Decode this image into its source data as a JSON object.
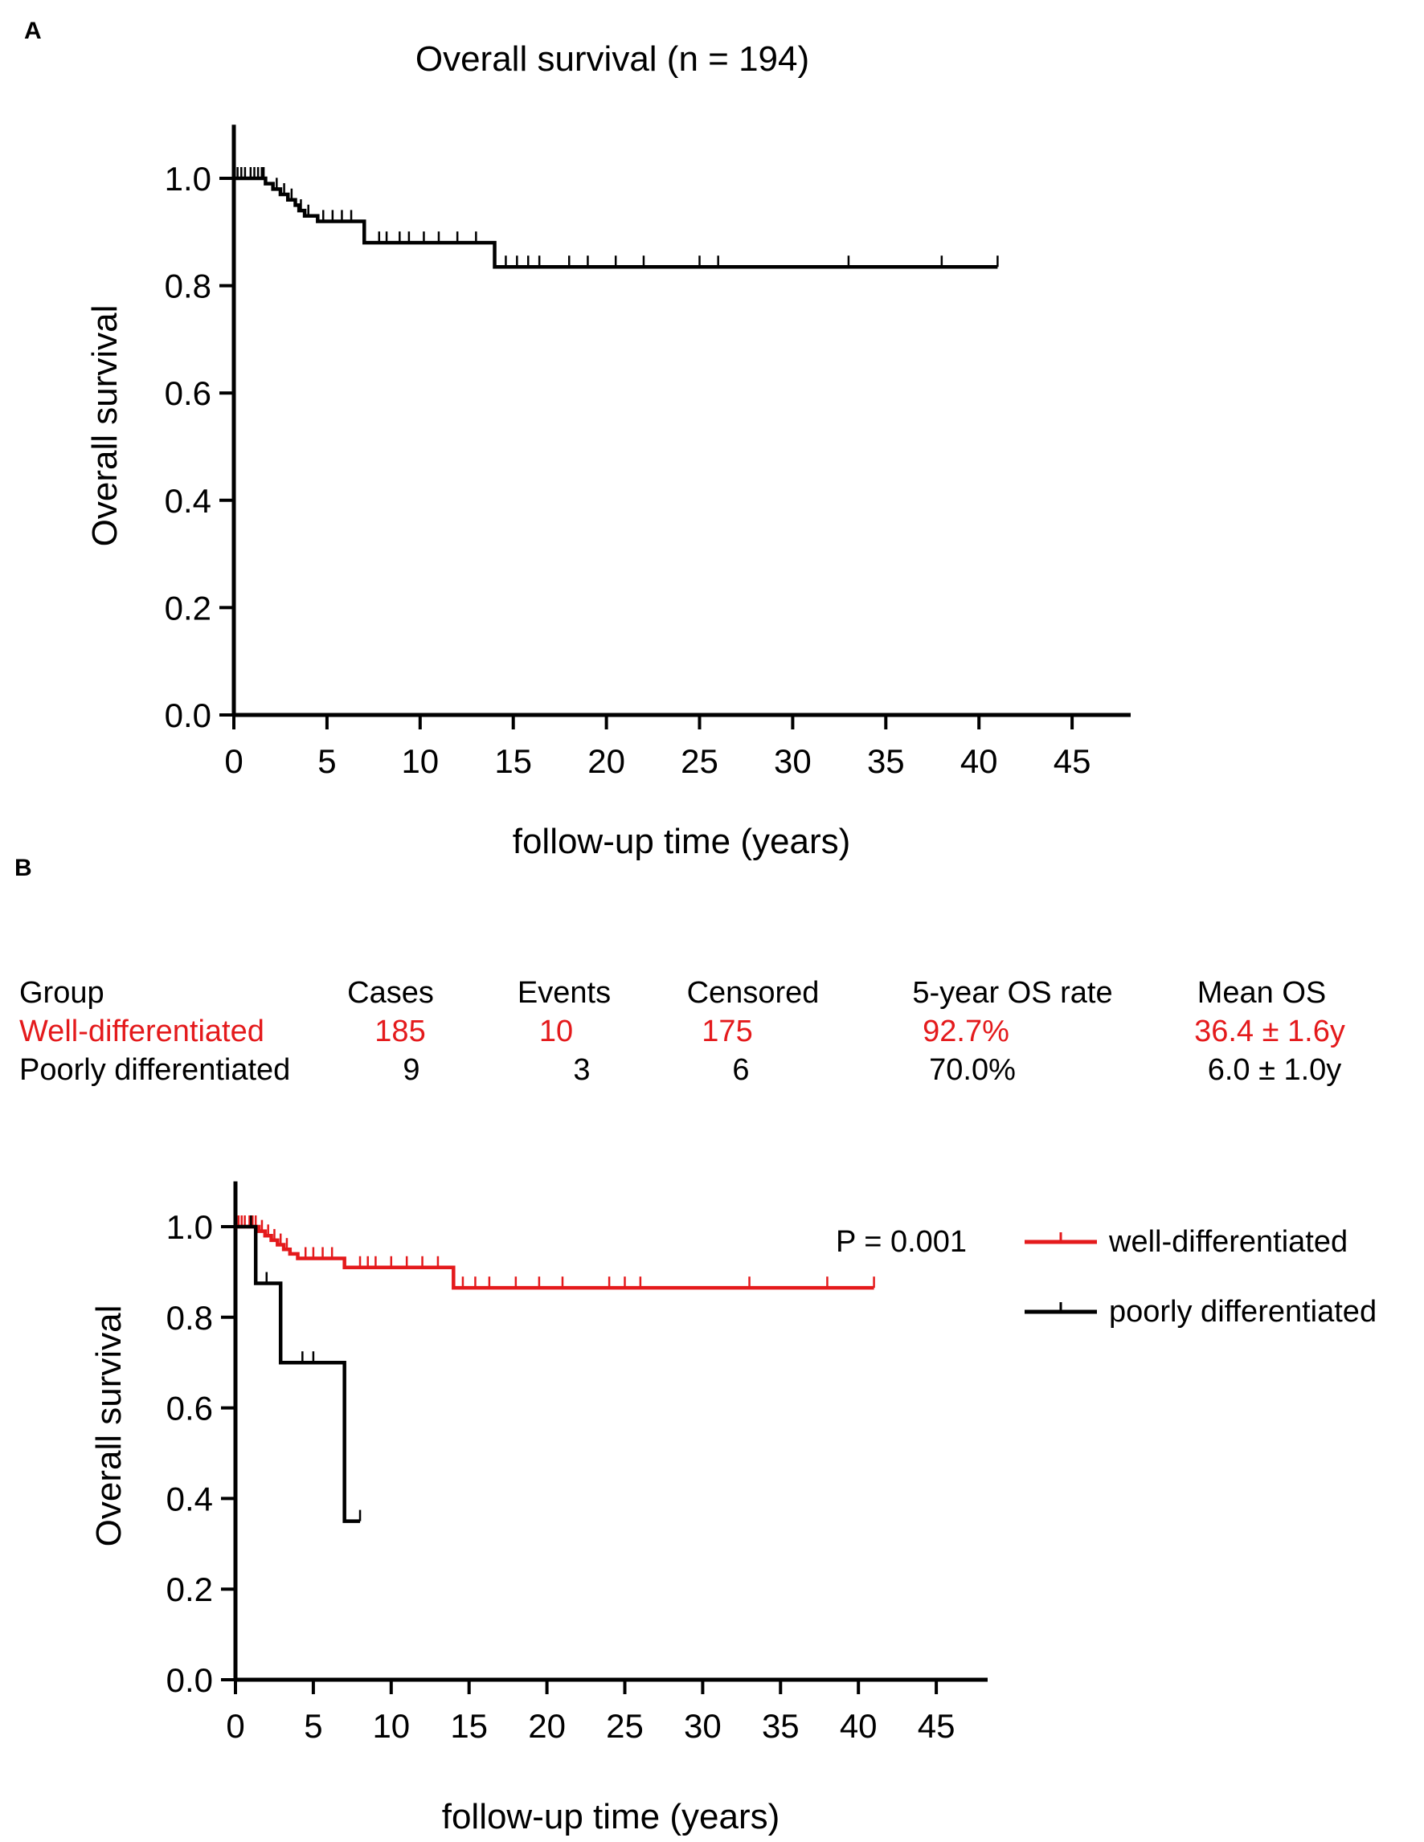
{
  "figure": {
    "panel_a_letter": "A",
    "panel_b_letter": "B"
  },
  "colors": {
    "well": "#e41a1c",
    "poorly": "#000000",
    "axis": "#000000"
  },
  "table": {
    "headers": [
      "Group",
      "Cases",
      "Events",
      "Censored",
      "5-year OS rate",
      "Mean OS"
    ],
    "rows": [
      {
        "group": "Well-differentiated",
        "cases": "185",
        "events": "10",
        "censored": "175",
        "os5": "92.7%",
        "mean": "36.4 ± 1.6y",
        "color": "#e41a1c"
      },
      {
        "group": "Poorly differentiated",
        "cases": "9",
        "events": "3",
        "censored": "6",
        "os5": "70.0%",
        "mean": "6.0 ± 1.0y",
        "color": "#000000"
      }
    ]
  },
  "chart_data": [
    {
      "type": "line",
      "subtype": "kaplan-meier",
      "title": "Overall survival (n = 194)",
      "xlabel": "follow-up time (years)",
      "ylabel": "Overall survival",
      "xlim": [
        0,
        48
      ],
      "ylim": [
        0,
        1.1
      ],
      "xticks": [
        0,
        5,
        10,
        15,
        20,
        25,
        30,
        35,
        40,
        45
      ],
      "yticks": [
        0.0,
        0.2,
        0.4,
        0.6,
        0.8,
        1.0
      ],
      "xtick_labels": [
        "0",
        "5",
        "10",
        "15",
        "20",
        "25",
        "30",
        "35",
        "40",
        "45"
      ],
      "ytick_labels": [
        "0.0",
        "0.2",
        "0.4",
        "0.6",
        "0.8",
        "1.0"
      ],
      "series": [
        {
          "name": "overall",
          "color": "#000000",
          "steps": [
            [
              0,
              1.0
            ],
            [
              1.7,
              0.99
            ],
            [
              2.1,
              0.98
            ],
            [
              2.5,
              0.97
            ],
            [
              2.9,
              0.96
            ],
            [
              3.3,
              0.95
            ],
            [
              3.5,
              0.94
            ],
            [
              3.8,
              0.93
            ],
            [
              4.5,
              0.92
            ],
            [
              7.0,
              0.88
            ],
            [
              14.0,
              0.835
            ],
            [
              41.0,
              0.835
            ]
          ],
          "censor": [
            0.2,
            0.4,
            0.6,
            0.9,
            1.1,
            1.3,
            1.5,
            1.6,
            2.3,
            2.7,
            3.1,
            3.6,
            4.0,
            4.8,
            5.3,
            5.8,
            6.3,
            7.8,
            8.2,
            8.9,
            9.4,
            10.2,
            11.0,
            12.0,
            13.0,
            14.6,
            15.2,
            15.8,
            16.4,
            18.0,
            19.0,
            20.5,
            22.0,
            25.0,
            26.0,
            33.0,
            38.0,
            41.0
          ]
        }
      ]
    },
    {
      "type": "line",
      "subtype": "kaplan-meier",
      "title": "",
      "xlabel": "follow-up time (years)",
      "ylabel": "Overall survival",
      "xlim": [
        0,
        48
      ],
      "ylim": [
        0,
        1.1
      ],
      "xticks": [
        0,
        5,
        10,
        15,
        20,
        25,
        30,
        35,
        40,
        45
      ],
      "yticks": [
        0.0,
        0.2,
        0.4,
        0.6,
        0.8,
        1.0
      ],
      "xtick_labels": [
        "0",
        "5",
        "10",
        "15",
        "20",
        "25",
        "30",
        "35",
        "40",
        "45"
      ],
      "ytick_labels": [
        "0.0",
        "0.2",
        "0.4",
        "0.6",
        "0.8",
        "1.0"
      ],
      "annotation": "P = 0.001",
      "legend": [
        "well-differentiated",
        "poorly differentiated"
      ],
      "legend_position": "right",
      "series": [
        {
          "name": "well-differentiated",
          "color": "#e41a1c",
          "steps": [
            [
              0,
              1.0
            ],
            [
              1.5,
              0.99
            ],
            [
              1.9,
              0.98
            ],
            [
              2.3,
              0.97
            ],
            [
              2.7,
              0.96
            ],
            [
              3.1,
              0.95
            ],
            [
              3.5,
              0.94
            ],
            [
              4.0,
              0.93
            ],
            [
              7.0,
              0.91
            ],
            [
              14.0,
              0.865
            ],
            [
              41.0,
              0.865
            ]
          ],
          "censor": [
            0.2,
            0.4,
            0.6,
            0.9,
            1.1,
            1.3,
            1.7,
            2.1,
            2.5,
            2.9,
            3.3,
            4.5,
            5.0,
            5.6,
            6.2,
            8.0,
            8.5,
            9.0,
            10.0,
            11.0,
            12.0,
            13.0,
            14.6,
            15.4,
            16.3,
            18.0,
            19.5,
            21.0,
            24.0,
            25.0,
            26.0,
            33.0,
            38.0,
            41.0
          ]
        },
        {
          "name": "poorly differentiated",
          "color": "#000000",
          "steps": [
            [
              0,
              1.0
            ],
            [
              1.3,
              0.875
            ],
            [
              2.9,
              0.7
            ],
            [
              7.0,
              0.35
            ],
            [
              8.0,
              0.35
            ]
          ],
          "censor": [
            1.0,
            2.0,
            4.3,
            5.0,
            8.0
          ]
        }
      ]
    }
  ]
}
